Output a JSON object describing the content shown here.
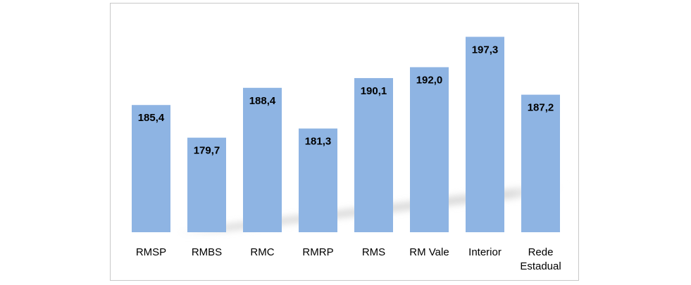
{
  "chart_data": {
    "type": "bar",
    "categories": [
      "RMSP",
      "RMBS",
      "RMC",
      "RMRP",
      "RMS",
      "RM Vale",
      "Interior",
      "Rede Estadual"
    ],
    "category_label_lines": [
      [
        "RMSP"
      ],
      [
        "RMBS"
      ],
      [
        "RMC"
      ],
      [
        "RMRP"
      ],
      [
        "RMS"
      ],
      [
        "RM Vale"
      ],
      [
        "Interior"
      ],
      [
        "Rede",
        "Estadual"
      ]
    ],
    "values": [
      185.4,
      179.7,
      188.4,
      181.3,
      190.1,
      192.0,
      197.3,
      187.2
    ],
    "value_labels": [
      "185,4",
      "179,7",
      "188,4",
      "181,3",
      "190,1",
      "192,0",
      "197,3",
      "187,2"
    ],
    "title": "",
    "xlabel": "",
    "ylabel": "",
    "ylim": [
      163.2,
      198.2
    ],
    "grid": false,
    "legend": "none",
    "colors": {
      "bar": "#8eb4e3",
      "shadow": "#d0d0d0",
      "label": "#000000"
    }
  }
}
